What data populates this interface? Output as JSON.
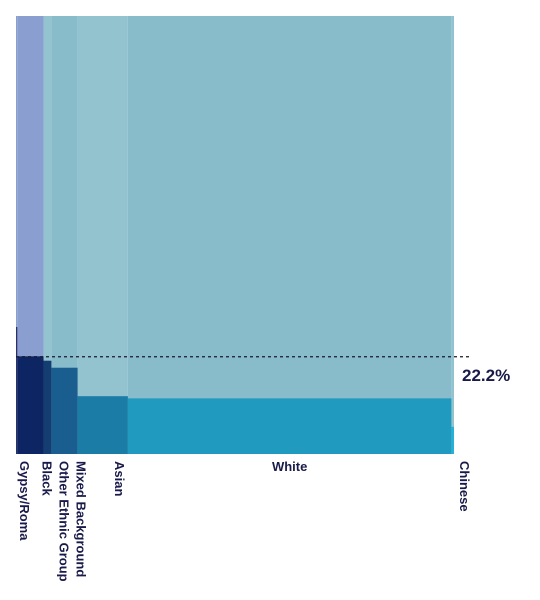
{
  "chart_data": {
    "type": "marimekko",
    "description_free": true,
    "categories": [
      "Gypsy/Roma",
      "Black",
      "Other Ethnic Group",
      "Mixed Background",
      "Asian",
      "White",
      "Chinese"
    ],
    "width_share_percent": [
      0.3,
      6.0,
      1.8,
      6.0,
      11.5,
      74.0,
      0.6
    ],
    "values_percent": [
      29.0,
      22.3,
      21.3,
      19.7,
      13.2,
      12.7,
      6.2
    ],
    "reference_line": {
      "value": 22.2,
      "label": "22.2%",
      "style": "dotted"
    },
    "ylim": [
      0,
      100
    ],
    "colors": {
      "background_band": "#88BCCB",
      "background_band_left": "#8A9FD0",
      "bars": [
        "#2B2F6B",
        "#0D2562",
        "#143E72",
        "#1A5E8F",
        "#1B7DA6",
        "#219AC0",
        "#25B1D6"
      ],
      "reference_line": "#1a1a2e",
      "label_text": "#1a1a4a"
    }
  }
}
